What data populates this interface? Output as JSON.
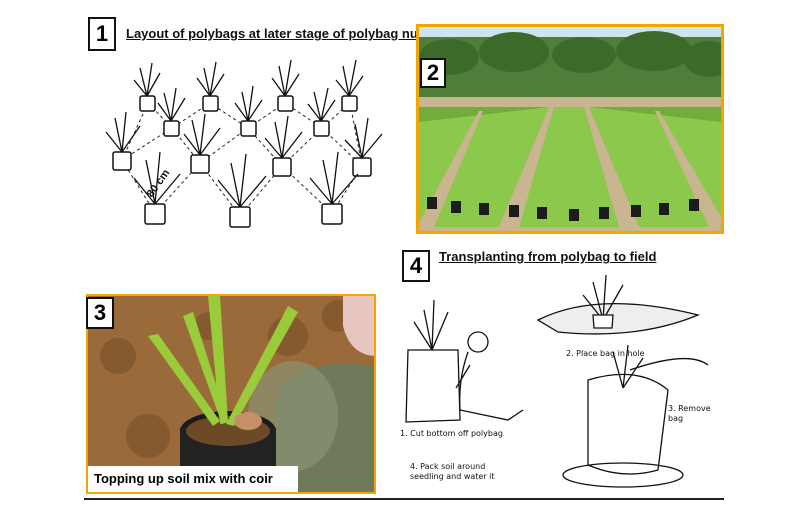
{
  "panels": [
    {
      "number": "1",
      "title": "Layout of polybags at later stage of polybag nursery"
    },
    {
      "number": "2",
      "title": ""
    },
    {
      "number": "3",
      "title": "Topping up soil mix with coir"
    },
    {
      "number": "4",
      "title": "Transplanting from polybag to field"
    }
  ],
  "layout_diagram": {
    "spacing_label": "80 cm"
  },
  "transplant_steps": [
    "1. Cut bottom off polybag",
    "2. Place bag in hole",
    "3. Remove bag",
    "4. Pack soil around seedling and water it"
  ],
  "colors": {
    "frame_border": "#f2a700",
    "foliage_green": "#5f9d2e",
    "soil_brown": "#9a6a3a",
    "sky": "#cfe3ef"
  }
}
